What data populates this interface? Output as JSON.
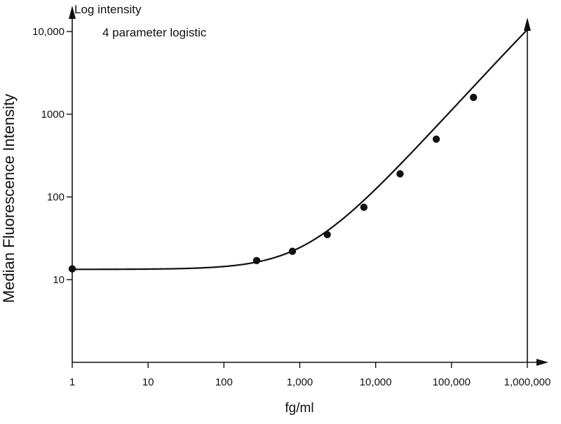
{
  "chart_data": {
    "type": "scatter",
    "title": "Log intensity",
    "subtitle": "4 parameter logistic",
    "xlabel": "fg/ml",
    "ylabel": "Median Fluorescence Intensity",
    "x_scale": "log",
    "y_scale": "log",
    "xlim": [
      1,
      1000000
    ],
    "ylim": [
      1,
      10000
    ],
    "x_ticks": [
      {
        "value": 1,
        "label": "1"
      },
      {
        "value": 10,
        "label": "10"
      },
      {
        "value": 100,
        "label": "100"
      },
      {
        "value": 1000,
        "label": "1,000"
      },
      {
        "value": 10000,
        "label": "10,000"
      },
      {
        "value": 100000,
        "label": "100,000"
      },
      {
        "value": 1000000,
        "label": "1,000,000"
      }
    ],
    "y_ticks": [
      {
        "value": 10,
        "label": "10"
      },
      {
        "value": 100,
        "label": "100"
      },
      {
        "value": 1000,
        "label": "1000"
      },
      {
        "value": 10000,
        "label": "10,000"
      }
    ],
    "grid": false,
    "legend": "none",
    "series": [
      {
        "kind": "points",
        "marker": "filled-circle",
        "color": "#111111",
        "points": [
          {
            "x": 1,
            "y": 13.5
          },
          {
            "x": 270,
            "y": 17
          },
          {
            "x": 800,
            "y": 22
          },
          {
            "x": 2300,
            "y": 35
          },
          {
            "x": 7000,
            "y": 75
          },
          {
            "x": 21000,
            "y": 190
          },
          {
            "x": 63000,
            "y": 500
          },
          {
            "x": 195000,
            "y": 1600
          }
        ]
      },
      {
        "kind": "fit-curve",
        "model": "4 parameter logistic",
        "color": "#111111",
        "params": {
          "bottom": 13.3,
          "top": 200000,
          "ec50": 18000000.0,
          "hill": 1.0
        },
        "x_range": [
          1,
          1000000
        ]
      }
    ]
  }
}
